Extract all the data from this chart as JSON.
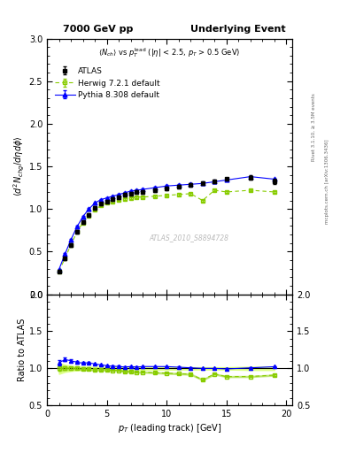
{
  "title_left": "7000 GeV pp",
  "title_right": "Underlying Event",
  "watermark": "ATLAS_2010_S8894728",
  "ylabel_main": "$\\langle d^2 N_{chg}/d\\eta d\\phi \\rangle$",
  "ylabel_ratio": "Ratio to ATLAS",
  "xlabel": "$p_T$ (leading track) [GeV]",
  "right_label_top": "Rivet 3.1.10, ≥ 3.5M events",
  "right_label_bot": "mcplots.cern.ch [arXiv:1306.3436]",
  "ylim_main": [
    0,
    3.0
  ],
  "ylim_ratio": [
    0.5,
    2.0
  ],
  "xlim": [
    0.5,
    20.5
  ],
  "atlas_x": [
    1.0,
    1.5,
    2.0,
    2.5,
    3.0,
    3.5,
    4.0,
    4.5,
    5.0,
    5.5,
    6.0,
    6.5,
    7.0,
    7.5,
    8.0,
    9.0,
    10.0,
    11.0,
    12.0,
    13.0,
    14.0,
    15.0,
    17.0,
    19.0
  ],
  "atlas_y": [
    0.27,
    0.42,
    0.58,
    0.73,
    0.85,
    0.93,
    1.01,
    1.06,
    1.09,
    1.12,
    1.14,
    1.17,
    1.18,
    1.2,
    1.2,
    1.22,
    1.24,
    1.26,
    1.28,
    1.3,
    1.32,
    1.35,
    1.37,
    1.32
  ],
  "atlas_yerr": [
    0.02,
    0.02,
    0.02,
    0.02,
    0.02,
    0.02,
    0.02,
    0.02,
    0.02,
    0.02,
    0.02,
    0.02,
    0.02,
    0.02,
    0.02,
    0.02,
    0.02,
    0.02,
    0.02,
    0.02,
    0.02,
    0.02,
    0.03,
    0.03
  ],
  "herwig_x": [
    1.0,
    1.5,
    2.0,
    2.5,
    3.0,
    3.5,
    4.0,
    4.5,
    5.0,
    5.5,
    6.0,
    6.5,
    7.0,
    7.5,
    8.0,
    9.0,
    10.0,
    11.0,
    12.0,
    13.0,
    14.0,
    15.0,
    17.0,
    19.0
  ],
  "herwig_y": [
    0.27,
    0.42,
    0.58,
    0.73,
    0.84,
    0.92,
    0.99,
    1.04,
    1.07,
    1.09,
    1.11,
    1.12,
    1.13,
    1.14,
    1.14,
    1.15,
    1.16,
    1.17,
    1.18,
    1.1,
    1.22,
    1.2,
    1.22,
    1.2
  ],
  "herwig_yerr": [
    0.01,
    0.01,
    0.01,
    0.01,
    0.01,
    0.01,
    0.01,
    0.01,
    0.01,
    0.01,
    0.01,
    0.01,
    0.01,
    0.01,
    0.01,
    0.01,
    0.01,
    0.01,
    0.01,
    0.01,
    0.01,
    0.01,
    0.01,
    0.01
  ],
  "pythia_x": [
    1.0,
    1.5,
    2.0,
    2.5,
    3.0,
    3.5,
    4.0,
    4.5,
    5.0,
    5.5,
    6.0,
    6.5,
    7.0,
    7.5,
    8.0,
    9.0,
    10.0,
    11.0,
    12.0,
    13.0,
    14.0,
    15.0,
    17.0,
    19.0
  ],
  "pythia_y": [
    0.29,
    0.47,
    0.64,
    0.79,
    0.91,
    1.0,
    1.07,
    1.11,
    1.13,
    1.15,
    1.17,
    1.19,
    1.21,
    1.22,
    1.23,
    1.25,
    1.27,
    1.28,
    1.29,
    1.3,
    1.32,
    1.34,
    1.38,
    1.35
  ],
  "pythia_yerr": [
    0.01,
    0.01,
    0.01,
    0.01,
    0.01,
    0.01,
    0.01,
    0.01,
    0.01,
    0.01,
    0.01,
    0.01,
    0.01,
    0.01,
    0.01,
    0.01,
    0.01,
    0.01,
    0.01,
    0.01,
    0.01,
    0.01,
    0.01,
    0.01
  ],
  "atlas_color": "black",
  "herwig_color": "#88cc00",
  "pythia_color": "blue",
  "herwig_band_light": "#ddff88",
  "herwig_band_dark": "#aade44",
  "xticks": [
    0,
    5,
    10,
    15,
    20
  ],
  "yticks_main": [
    0,
    0.5,
    1.0,
    1.5,
    2.0,
    2.5,
    3.0
  ],
  "yticks_ratio": [
    0.5,
    1.0,
    1.5,
    2.0
  ]
}
